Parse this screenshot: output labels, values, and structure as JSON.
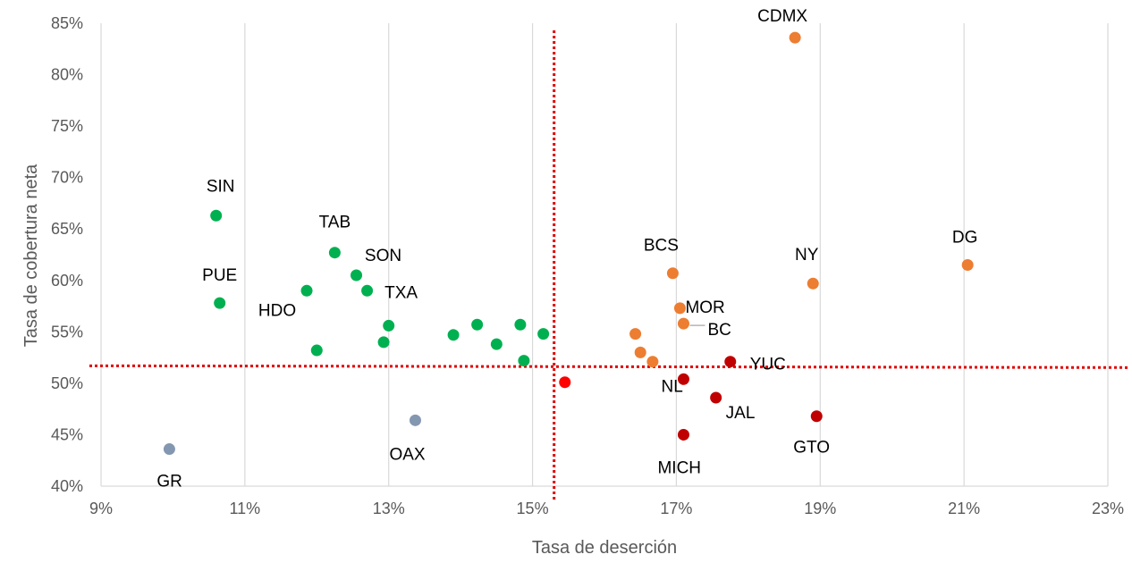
{
  "chart_data": {
    "type": "scatter",
    "title": "",
    "xlabel": "Tasa de deserción",
    "ylabel": "Tasa de cobertura neta",
    "xlim": [
      0.09,
      0.23
    ],
    "ylim": [
      0.4,
      0.85
    ],
    "x_ticks": [
      0.09,
      0.11,
      0.13,
      0.15,
      0.17,
      0.19,
      0.21,
      0.23
    ],
    "x_tick_labels": [
      "9%",
      "11%",
      "13%",
      "15%",
      "17%",
      "19%",
      "21%",
      "23%"
    ],
    "y_ticks": [
      0.4,
      0.45,
      0.5,
      0.55,
      0.6,
      0.65,
      0.7,
      0.75,
      0.8,
      0.85
    ],
    "y_tick_labels": [
      "40%",
      "45%",
      "50%",
      "55%",
      "60%",
      "65%",
      "70%",
      "75%",
      "80%",
      "85%"
    ],
    "grid": {
      "vertical": true,
      "horizontal": false
    },
    "reference_lines": {
      "x": 0.153,
      "y": 0.517,
      "color": "#E00000",
      "style": "dotted"
    },
    "colors": {
      "green": "#00B050",
      "orange": "#ED7D31",
      "darkred": "#C00000",
      "red": "#FF0000",
      "gray": "#8497B0",
      "grid": "#D9D9D9"
    },
    "points": [
      {
        "label": "SIN",
        "x": 0.106,
        "y": 0.663,
        "color": "green"
      },
      {
        "label": "PUE",
        "x": 0.1065,
        "y": 0.578,
        "color": "green"
      },
      {
        "label": "TAB",
        "x": 0.1225,
        "y": 0.627,
        "color": "green"
      },
      {
        "label": "SON",
        "x": 0.1255,
        "y": 0.605,
        "color": "green"
      },
      {
        "label": "HDO",
        "x": 0.1186,
        "y": 0.59,
        "color": "green"
      },
      {
        "label": "TXA",
        "x": 0.127,
        "y": 0.59,
        "color": "green"
      },
      {
        "label": "",
        "x": 0.12,
        "y": 0.532,
        "color": "green"
      },
      {
        "label": "",
        "x": 0.13,
        "y": 0.556,
        "color": "green"
      },
      {
        "label": "",
        "x": 0.1293,
        "y": 0.54,
        "color": "green"
      },
      {
        "label": "",
        "x": 0.139,
        "y": 0.547,
        "color": "green"
      },
      {
        "label": "",
        "x": 0.1423,
        "y": 0.557,
        "color": "green"
      },
      {
        "label": "",
        "x": 0.145,
        "y": 0.538,
        "color": "green"
      },
      {
        "label": "",
        "x": 0.1483,
        "y": 0.557,
        "color": "green"
      },
      {
        "label": "",
        "x": 0.1488,
        "y": 0.522,
        "color": "green"
      },
      {
        "label": "",
        "x": 0.1515,
        "y": 0.548,
        "color": "green"
      },
      {
        "label": "",
        "x": 0.1545,
        "y": 0.501,
        "color": "red"
      },
      {
        "label": "CDMX",
        "x": 0.1865,
        "y": 0.836,
        "color": "orange"
      },
      {
        "label": "BCS",
        "x": 0.1695,
        "y": 0.607,
        "color": "orange"
      },
      {
        "label": "MOR",
        "x": 0.1705,
        "y": 0.573,
        "color": "orange"
      },
      {
        "label": "BC",
        "x": 0.171,
        "y": 0.558,
        "color": "orange"
      },
      {
        "label": "DG",
        "x": 0.2105,
        "y": 0.615,
        "color": "orange"
      },
      {
        "label": "NY",
        "x": 0.189,
        "y": 0.597,
        "color": "orange"
      },
      {
        "label": "",
        "x": 0.1643,
        "y": 0.548,
        "color": "orange"
      },
      {
        "label": "",
        "x": 0.165,
        "y": 0.53,
        "color": "orange"
      },
      {
        "label": "",
        "x": 0.1667,
        "y": 0.521,
        "color": "orange"
      },
      {
        "label": "YUC",
        "x": 0.1775,
        "y": 0.521,
        "color": "darkred"
      },
      {
        "label": "NL",
        "x": 0.171,
        "y": 0.504,
        "color": "darkred"
      },
      {
        "label": "JAL",
        "x": 0.1755,
        "y": 0.486,
        "color": "darkred"
      },
      {
        "label": "GTO",
        "x": 0.1895,
        "y": 0.468,
        "color": "darkred"
      },
      {
        "label": "MICH",
        "x": 0.171,
        "y": 0.45,
        "color": "darkred"
      },
      {
        "label": "OAX",
        "x": 0.1337,
        "y": 0.464,
        "color": "gray"
      },
      {
        "label": "GR",
        "x": 0.0995,
        "y": 0.436,
        "color": "gray"
      }
    ]
  }
}
